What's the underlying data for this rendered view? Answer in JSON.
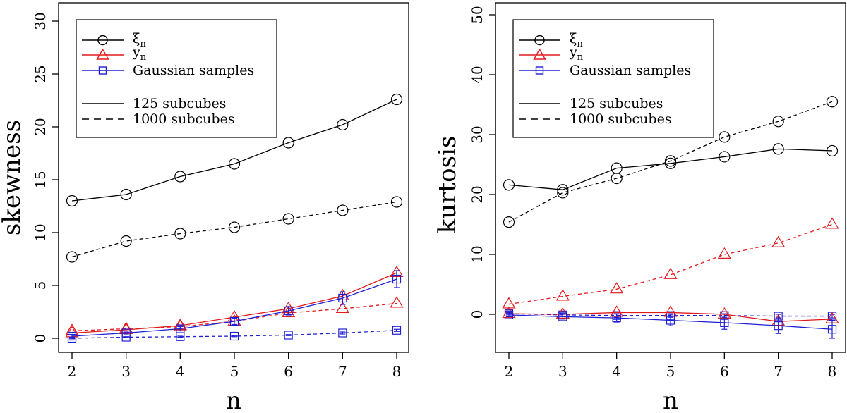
{
  "chart_data": [
    {
      "type": "line",
      "xlabel": "n",
      "ylabel": "skewness",
      "x": [
        2,
        3,
        4,
        5,
        6,
        7,
        8
      ],
      "xlim": [
        2,
        8
      ],
      "ylim": [
        0,
        30
      ],
      "xticks": [
        "2",
        "3",
        "4",
        "5",
        "6",
        "7",
        "8"
      ],
      "yticks": [
        "0",
        "5",
        "10",
        "15",
        "20",
        "25",
        "30"
      ],
      "legend_position": "top-left",
      "series": [
        {
          "name": "xi_n, 125 subcubes",
          "variable": "xi",
          "subcubes": 125,
          "color": "#000000",
          "marker": "circle",
          "dashed": false,
          "values": [
            13.0,
            13.6,
            15.3,
            16.5,
            18.5,
            20.2,
            22.6
          ]
        },
        {
          "name": "xi_n, 1000 subcubes",
          "variable": "xi",
          "subcubes": 1000,
          "color": "#000000",
          "marker": "circle",
          "dashed": true,
          "values": [
            7.7,
            9.2,
            9.9,
            10.5,
            11.3,
            12.1,
            12.9
          ]
        },
        {
          "name": "y_n, 125 subcubes",
          "variable": "y",
          "subcubes": 125,
          "color": "#e31a1c",
          "marker": "triangle",
          "dashed": false,
          "values": [
            0.5,
            0.8,
            1.2,
            2.0,
            2.8,
            4.0,
            6.2
          ]
        },
        {
          "name": "y_n, 1000 subcubes",
          "variable": "y",
          "subcubes": 1000,
          "color": "#e31a1c",
          "marker": "triangle",
          "dashed": true,
          "values": [
            0.7,
            0.9,
            1.1,
            1.6,
            2.4,
            2.8,
            3.3
          ]
        },
        {
          "name": "Gaussian samples, 125 subcubes",
          "variable": "gauss",
          "subcubes": 125,
          "color": "#1f1fd6",
          "marker": "square",
          "dashed": false,
          "values": [
            0.2,
            0.5,
            0.9,
            1.6,
            2.6,
            3.8,
            5.6
          ],
          "errors": [
            0.1,
            0.1,
            0.2,
            0.3,
            0.4,
            0.6,
            0.8
          ]
        },
        {
          "name": "Gaussian samples, 1000 subcubes",
          "variable": "gauss",
          "subcubes": 1000,
          "color": "#1f1fd6",
          "marker": "square",
          "dashed": true,
          "values": [
            0.0,
            0.1,
            0.15,
            0.2,
            0.3,
            0.5,
            0.75
          ],
          "errors": [
            0.05,
            0.05,
            0.05,
            0.05,
            0.05,
            0.1,
            0.1
          ]
        }
      ]
    },
    {
      "type": "line",
      "xlabel": "n",
      "ylabel": "kurtosis",
      "x": [
        2,
        3,
        4,
        5,
        6,
        7,
        8
      ],
      "xlim": [
        2,
        8
      ],
      "ylim": [
        -5,
        50
      ],
      "xticks": [
        "2",
        "3",
        "4",
        "5",
        "6",
        "7",
        "8"
      ],
      "yticks": [
        "0",
        "10",
        "20",
        "30",
        "40",
        "50"
      ],
      "legend_position": "top-left",
      "series": [
        {
          "name": "xi_n, 125 subcubes",
          "variable": "xi",
          "subcubes": 125,
          "color": "#000000",
          "marker": "circle",
          "dashed": false,
          "values": [
            21.6,
            20.8,
            24.4,
            25.2,
            26.3,
            27.6,
            27.3
          ]
        },
        {
          "name": "xi_n, 1000 subcubes",
          "variable": "xi",
          "subcubes": 1000,
          "color": "#000000",
          "marker": "circle",
          "dashed": true,
          "values": [
            15.4,
            20.3,
            22.7,
            25.6,
            29.6,
            32.2,
            35.5
          ]
        },
        {
          "name": "y_n, 125 subcubes",
          "variable": "y",
          "subcubes": 125,
          "color": "#e31a1c",
          "marker": "triangle",
          "dashed": false,
          "values": [
            0.1,
            0.0,
            0.3,
            0.3,
            0.0,
            -1.2,
            -0.8
          ]
        },
        {
          "name": "y_n, 1000 subcubes",
          "variable": "y",
          "subcubes": 1000,
          "color": "#e31a1c",
          "marker": "triangle",
          "dashed": true,
          "values": [
            1.7,
            3.0,
            4.2,
            6.6,
            10.0,
            11.9,
            15.0
          ]
        },
        {
          "name": "Gaussian samples, 125 subcubes",
          "variable": "gauss",
          "subcubes": 125,
          "color": "#1f1fd6",
          "marker": "square",
          "dashed": false,
          "values": [
            -0.1,
            -0.4,
            -0.6,
            -1.0,
            -1.4,
            -1.9,
            -2.5
          ],
          "errors": [
            0.3,
            0.4,
            0.7,
            0.9,
            1.1,
            1.3,
            1.5
          ]
        },
        {
          "name": "Gaussian samples, 1000 subcubes",
          "variable": "gauss",
          "subcubes": 1000,
          "color": "#1f1fd6",
          "marker": "square",
          "dashed": true,
          "values": [
            0.1,
            -0.1,
            -0.2,
            -0.2,
            -0.2,
            -0.3,
            -0.3
          ],
          "errors": [
            0.2,
            0.2,
            0.3,
            0.3,
            0.3,
            0.3,
            0.3
          ]
        }
      ]
    }
  ],
  "legend": {
    "xi_main": "ξ",
    "xi_sub": "n",
    "y_main": "y",
    "y_sub": "n",
    "gauss": "Gaussian samples",
    "solid": "125 subcubes",
    "dashed": "1000 subcubes"
  },
  "colors": {
    "black": "#000000",
    "red": "#e31a1c",
    "blue": "#1f1fd6",
    "gray_line": "#bbbbbb"
  }
}
